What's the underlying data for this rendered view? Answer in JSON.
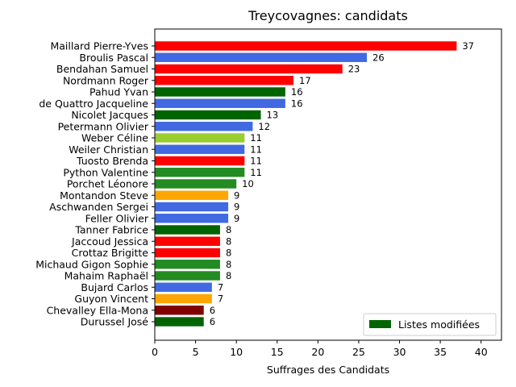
{
  "chart_data": {
    "type": "bar",
    "orientation": "horizontal",
    "title": "Treycovagnes: candidats",
    "xlabel": "Suffrages des Candidats",
    "ylabel": "",
    "xlim": [
      0,
      42.5
    ],
    "xticks": [
      0,
      5,
      10,
      15,
      20,
      25,
      30,
      35,
      40
    ],
    "grid": false,
    "legend": {
      "placement": "lower-right",
      "entries": [
        {
          "label": "Listes modifiées",
          "color": "#006400"
        }
      ]
    },
    "categories": [
      "Maillard Pierre-Yves",
      "Broulis Pascal",
      "Bendahan Samuel",
      "Nordmann Roger",
      "Pahud Yvan",
      "de Quattro Jacqueline",
      "Nicolet Jacques",
      "Petermann Olivier",
      "Weber Céline",
      "Weiler Christian",
      "Tuosto Brenda",
      "Python Valentine",
      "Porchet Léonore",
      "Montandon Steve",
      "Aschwanden Sergei",
      "Feller Olivier",
      "Tanner Fabrice",
      "Jaccoud Jessica",
      "Crottaz Brigitte",
      "Michaud Gigon Sophie",
      "Mahaim Raphaël",
      "Bujard Carlos",
      "Guyon Vincent",
      "Chevalley Ella-Mona",
      "Durussel José"
    ],
    "values": [
      37,
      26,
      23,
      17,
      16,
      16,
      13,
      12,
      11,
      11,
      11,
      11,
      10,
      9,
      9,
      9,
      8,
      8,
      8,
      8,
      8,
      7,
      7,
      6,
      6
    ],
    "colors": [
      "#ff0000",
      "#4169e1",
      "#ff0000",
      "#ff0000",
      "#006400",
      "#4169e1",
      "#006400",
      "#4169e1",
      "#9acd32",
      "#4169e1",
      "#ff0000",
      "#228b22",
      "#228b22",
      "#ffa500",
      "#4169e1",
      "#4169e1",
      "#006400",
      "#ff0000",
      "#ff0000",
      "#228b22",
      "#228b22",
      "#4169e1",
      "#ffa500",
      "#800000",
      "#006400"
    ]
  }
}
